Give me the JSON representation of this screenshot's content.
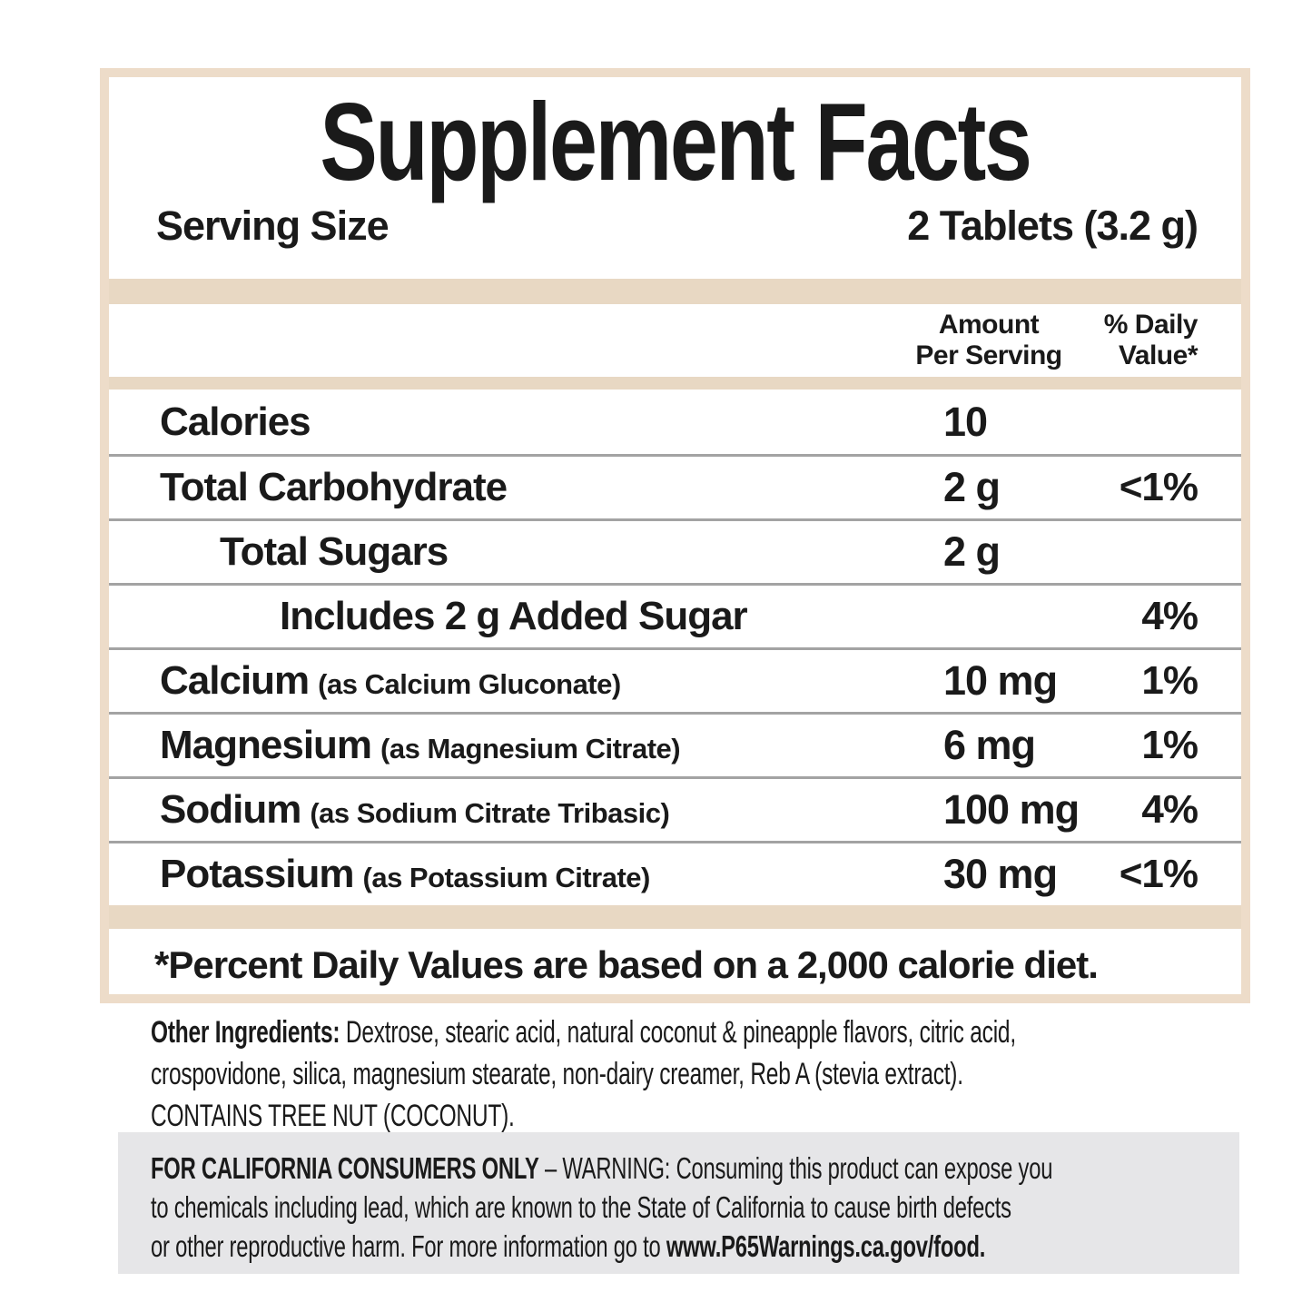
{
  "label": {
    "title": "Supplement Facts",
    "serving": {
      "label": "Serving Size",
      "value": "2 Tablets (3.2 g)"
    },
    "columns": {
      "amount_line1": "Amount",
      "amount_line2": "Per Serving",
      "dv_line1": "% Daily",
      "dv_line2": "Value*"
    },
    "rows": [
      {
        "name": "Calories",
        "form": "",
        "amount": "10",
        "dv": ""
      },
      {
        "name": "Total Carbohydrate",
        "form": "",
        "amount": "2 g",
        "dv": "<1%"
      },
      {
        "name": "Total Sugars",
        "form": "",
        "amount": "2 g",
        "dv": ""
      },
      {
        "name": "Includes 2 g Added Sugar",
        "form": "",
        "amount": "",
        "dv": "4%"
      },
      {
        "name": "Calcium",
        "form": "(as Calcium Gluconate)",
        "amount": "10 mg",
        "dv": "1%"
      },
      {
        "name": "Magnesium",
        "form": "(as Magnesium Citrate)",
        "amount": "6 mg",
        "dv": "1%"
      },
      {
        "name": "Sodium",
        "form": "(as Sodium Citrate Tribasic)",
        "amount": "100 mg",
        "dv": "4%"
      },
      {
        "name": "Potassium",
        "form": "(as Potassium Citrate)",
        "amount": "30 mg",
        "dv": "<1%"
      }
    ],
    "footnote": "*Percent Daily Values are based on a 2,000 calorie diet."
  },
  "other_ingredients": {
    "label": "Other Ingredients:",
    "line1_rest": " Dextrose, stearic acid, natural coconut & pineapple flavors, citric acid,",
    "line2": "crospovidone, silica, magnesium stearate, non-dairy creamer, Reb A (stevia extract).",
    "line3": "CONTAINS TREE NUT (COCONUT)."
  },
  "california_warning": {
    "bold_lead": "FOR CALIFORNIA CONSUMERS ONLY",
    "line1_rest": " – WARNING: Consuming this product can expose you",
    "line2": "to chemicals including lead, which are known to the State of California to cause birth defects",
    "line3_start": "or other reproductive harm. For more information go to ",
    "url": "www.P65Warnings.ca.gov/food."
  },
  "colors": {
    "tan_band": "#e8d8c3",
    "box_border": "#eddcc9",
    "warning_background": "#e6e6e8",
    "divider": "#a3a3a3",
    "text": "#1a1a1a"
  }
}
